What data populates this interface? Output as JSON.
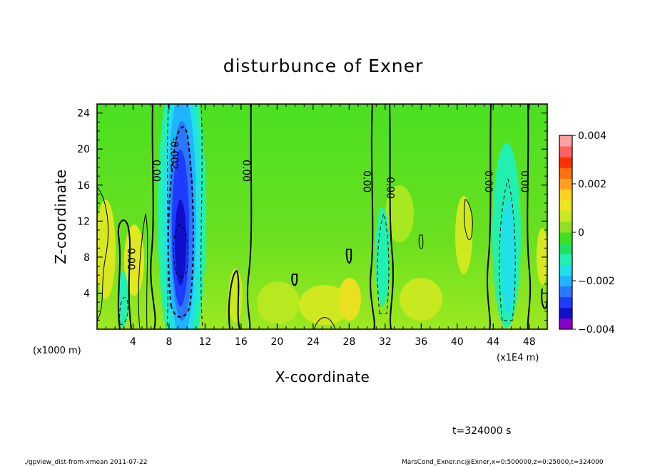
{
  "chart_data": {
    "type": "heatmap",
    "title": "disturbunce of Exner",
    "xlabel": "X-coordinate",
    "ylabel": "Z-coordinate",
    "x_unit_left": "(x1000 m)",
    "x_unit_right": "(x1E4 m)",
    "x_ticks": [
      4,
      8,
      12,
      16,
      20,
      24,
      28,
      32,
      36,
      40,
      44,
      48
    ],
    "y_ticks": [
      4,
      8,
      12,
      16,
      20,
      24
    ],
    "xlim": [
      0,
      50
    ],
    "ylim": [
      0,
      25
    ],
    "colorbar": {
      "range": [
        -0.004,
        0.004
      ],
      "labels": [
        "0.004",
        "0.002",
        "0",
        "−0.002",
        "−0.004"
      ],
      "label_values": [
        0.004,
        0.002,
        0,
        -0.002,
        -0.004
      ],
      "colors": [
        "#8b00c8",
        "#1010c8",
        "#1e3cff",
        "#2a78ff",
        "#1eb4ff",
        "#22e0e8",
        "#22f0b0",
        "#22e060",
        "#40e020",
        "#90e020",
        "#c8e820",
        "#e8e820",
        "#ffd020",
        "#ffa020",
        "#ff7010",
        "#ff3000",
        "#ff6060",
        "#ffa0a0"
      ]
    },
    "contour_labels": [
      {
        "text": "0.00",
        "x": 6.6,
        "z": 17.6
      },
      {
        "text": "-0.002",
        "x": 8.6,
        "z": 19.5
      },
      {
        "text": "0.00",
        "x": 16.6,
        "z": 17.6
      },
      {
        "text": "0.00",
        "x": 30.0,
        "z": 16.4
      },
      {
        "text": "0.00",
        "x": 32.6,
        "z": 15.7
      },
      {
        "text": "0.00",
        "x": 43.5,
        "z": 16.4
      },
      {
        "text": "0.00",
        "x": 47.5,
        "z": 16.4
      },
      {
        "text": "0.00",
        "x": 3.8,
        "z": 7.8
      }
    ],
    "time_label": "t=324000 s",
    "footer_left": "./gpview_dist-from-xmean   2011-07-22",
    "footer_right": "MarsCond_Exner.nc@Exner,x=0:500000,z=0:25000,t=324000"
  }
}
